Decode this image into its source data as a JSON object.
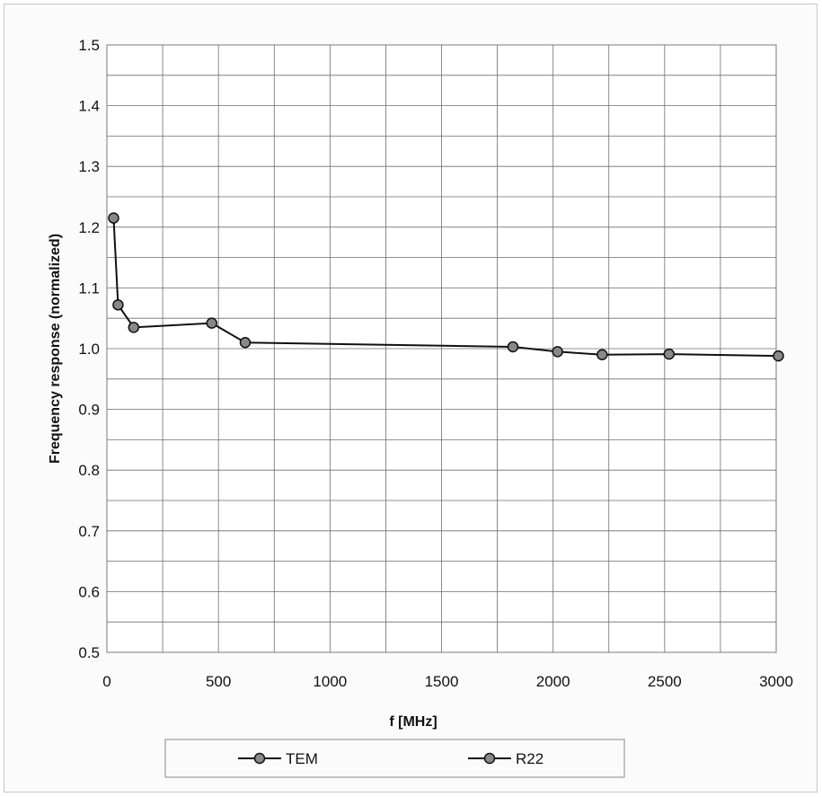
{
  "chart_data": {
    "type": "line",
    "title": "",
    "xlabel": "f [MHz]",
    "ylabel": "Frequency response (normalized)",
    "xlim": [
      0,
      3000
    ],
    "ylim": [
      0.5,
      1.5
    ],
    "x_ticks": [
      0,
      500,
      1000,
      1500,
      2000,
      2500,
      3000
    ],
    "y_ticks": [
      0.5,
      0.6,
      0.7,
      0.8,
      0.9,
      1.0,
      1.1,
      1.2,
      1.3,
      1.4,
      1.5
    ],
    "y_tick_labels": [
      "0.5",
      "0.6",
      "0.7",
      "0.8",
      "0.9",
      "1.0",
      "1.1",
      "1.2",
      "1.3",
      "1.4",
      "1.5"
    ],
    "grid": true,
    "legend_position": "bottom",
    "series": [
      {
        "name": "TEM",
        "color": "#888888",
        "marker": "circle",
        "x": [
          30,
          50,
          120,
          470,
          620,
          1820,
          2020,
          2220,
          2520,
          3010
        ],
        "y": [
          1.215,
          1.072,
          1.035,
          1.042,
          1.01,
          1.003,
          0.995,
          0.99,
          0.991,
          0.988
        ]
      },
      {
        "name": "R22",
        "color": "#888888",
        "marker": "circle",
        "x": [],
        "y": []
      }
    ]
  }
}
